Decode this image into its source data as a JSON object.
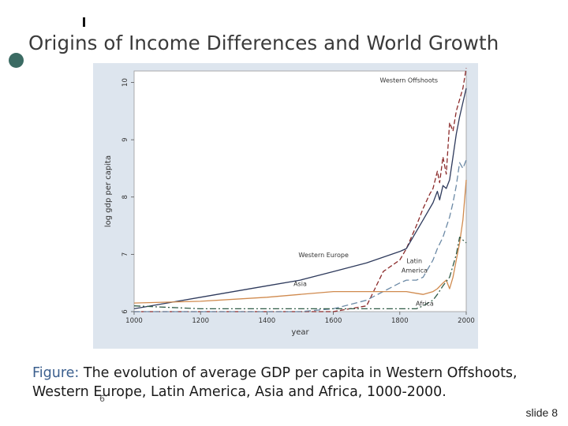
{
  "slide": {
    "title": "Origins of Income Differences and World Growth",
    "caption_label": "Figure:",
    "caption_text": "The evolution of average GDP per capita in Western Offshoots, Western Europe, Latin America, Asia and Africa, 1000-2000.",
    "page_number": "6",
    "footer": "slide 8"
  },
  "colors": {
    "panel": "#dde5ee",
    "plot_bg": "#ffffff",
    "accent": "#3b6b63",
    "caption_label": "#3b5f8e"
  },
  "chart_data": {
    "type": "line",
    "title": "",
    "xlabel": "year",
    "ylabel": "log gdp per capita",
    "xlim": [
      1000,
      2000
    ],
    "ylim": [
      6,
      10.2
    ],
    "xticks": [
      1000,
      1200,
      1400,
      1600,
      1800,
      2000
    ],
    "yticks": [
      6,
      7,
      8,
      9,
      10
    ],
    "grid": false,
    "series": [
      {
        "name": "Western Offshoots",
        "color": "#8b2a2a",
        "dash": "6,3",
        "x": [
          1000,
          1500,
          1600,
          1700,
          1750,
          1800,
          1820,
          1850,
          1870,
          1890,
          1900,
          1913,
          1920,
          1930,
          1940,
          1950,
          1960,
          1970,
          1980,
          1990,
          2000
        ],
        "y": [
          6.0,
          6.0,
          6.0,
          6.1,
          6.7,
          6.9,
          7.1,
          7.5,
          7.8,
          8.05,
          8.15,
          8.45,
          8.25,
          8.7,
          8.4,
          9.3,
          9.15,
          9.5,
          9.7,
          9.9,
          10.25
        ]
      },
      {
        "name": "Western Europe",
        "color": "#2e3a5c",
        "dash": "",
        "x": [
          1000,
          1200,
          1400,
          1500,
          1600,
          1700,
          1800,
          1820,
          1850,
          1870,
          1900,
          1913,
          1920,
          1930,
          1940,
          1950,
          1960,
          1970,
          1980,
          1990,
          2000
        ],
        "y": [
          6.05,
          6.25,
          6.45,
          6.55,
          6.7,
          6.85,
          7.05,
          7.1,
          7.4,
          7.6,
          7.9,
          8.1,
          7.95,
          8.2,
          8.15,
          8.3,
          8.7,
          9.1,
          9.4,
          9.65,
          9.9
        ]
      },
      {
        "name": "Latin America",
        "color": "#6c8aa6",
        "dash": "8,4",
        "x": [
          1000,
          1500,
          1600,
          1700,
          1800,
          1820,
          1850,
          1870,
          1900,
          1913,
          1930,
          1950,
          1960,
          1970,
          1980,
          1990,
          2000
        ],
        "y": [
          6.0,
          6.0,
          6.05,
          6.2,
          6.5,
          6.55,
          6.55,
          6.6,
          6.9,
          7.1,
          7.3,
          7.65,
          7.9,
          8.2,
          8.6,
          8.5,
          8.65
        ]
      },
      {
        "name": "Asia",
        "color": "#d08a4e",
        "dash": "",
        "x": [
          1000,
          1200,
          1400,
          1500,
          1600,
          1700,
          1800,
          1820,
          1850,
          1870,
          1900,
          1913,
          1930,
          1940,
          1950,
          1960,
          1970,
          1980,
          1990,
          2000
        ],
        "y": [
          6.15,
          6.18,
          6.25,
          6.3,
          6.35,
          6.35,
          6.35,
          6.35,
          6.32,
          6.3,
          6.35,
          6.4,
          6.5,
          6.55,
          6.4,
          6.6,
          6.9,
          7.2,
          7.6,
          8.3
        ]
      },
      {
        "name": "Africa",
        "color": "#2f5a46",
        "dash": "8,3,2,3",
        "x": [
          1000,
          1200,
          1400,
          1500,
          1600,
          1700,
          1800,
          1820,
          1850,
          1870,
          1900,
          1913,
          1930,
          1950,
          1960,
          1970,
          1980,
          1990,
          2000
        ],
        "y": [
          6.1,
          6.05,
          6.05,
          6.05,
          6.05,
          6.05,
          6.05,
          6.05,
          6.05,
          6.1,
          6.2,
          6.3,
          6.45,
          6.6,
          6.8,
          7.0,
          7.3,
          7.25,
          7.2
        ]
      }
    ],
    "annotations": [
      {
        "text": "Western Offshoots",
        "x": 1740,
        "y": 10.0
      },
      {
        "text": "Western Europe",
        "x": 1495,
        "y": 6.95
      },
      {
        "text": "Latin",
        "x": 1820,
        "y": 6.85
      },
      {
        "text": "America",
        "x": 1805,
        "y": 6.68
      },
      {
        "text": "Asia",
        "x": 1480,
        "y": 6.45
      },
      {
        "text": "Africa",
        "x": 1848,
        "y": 6.1
      }
    ]
  }
}
